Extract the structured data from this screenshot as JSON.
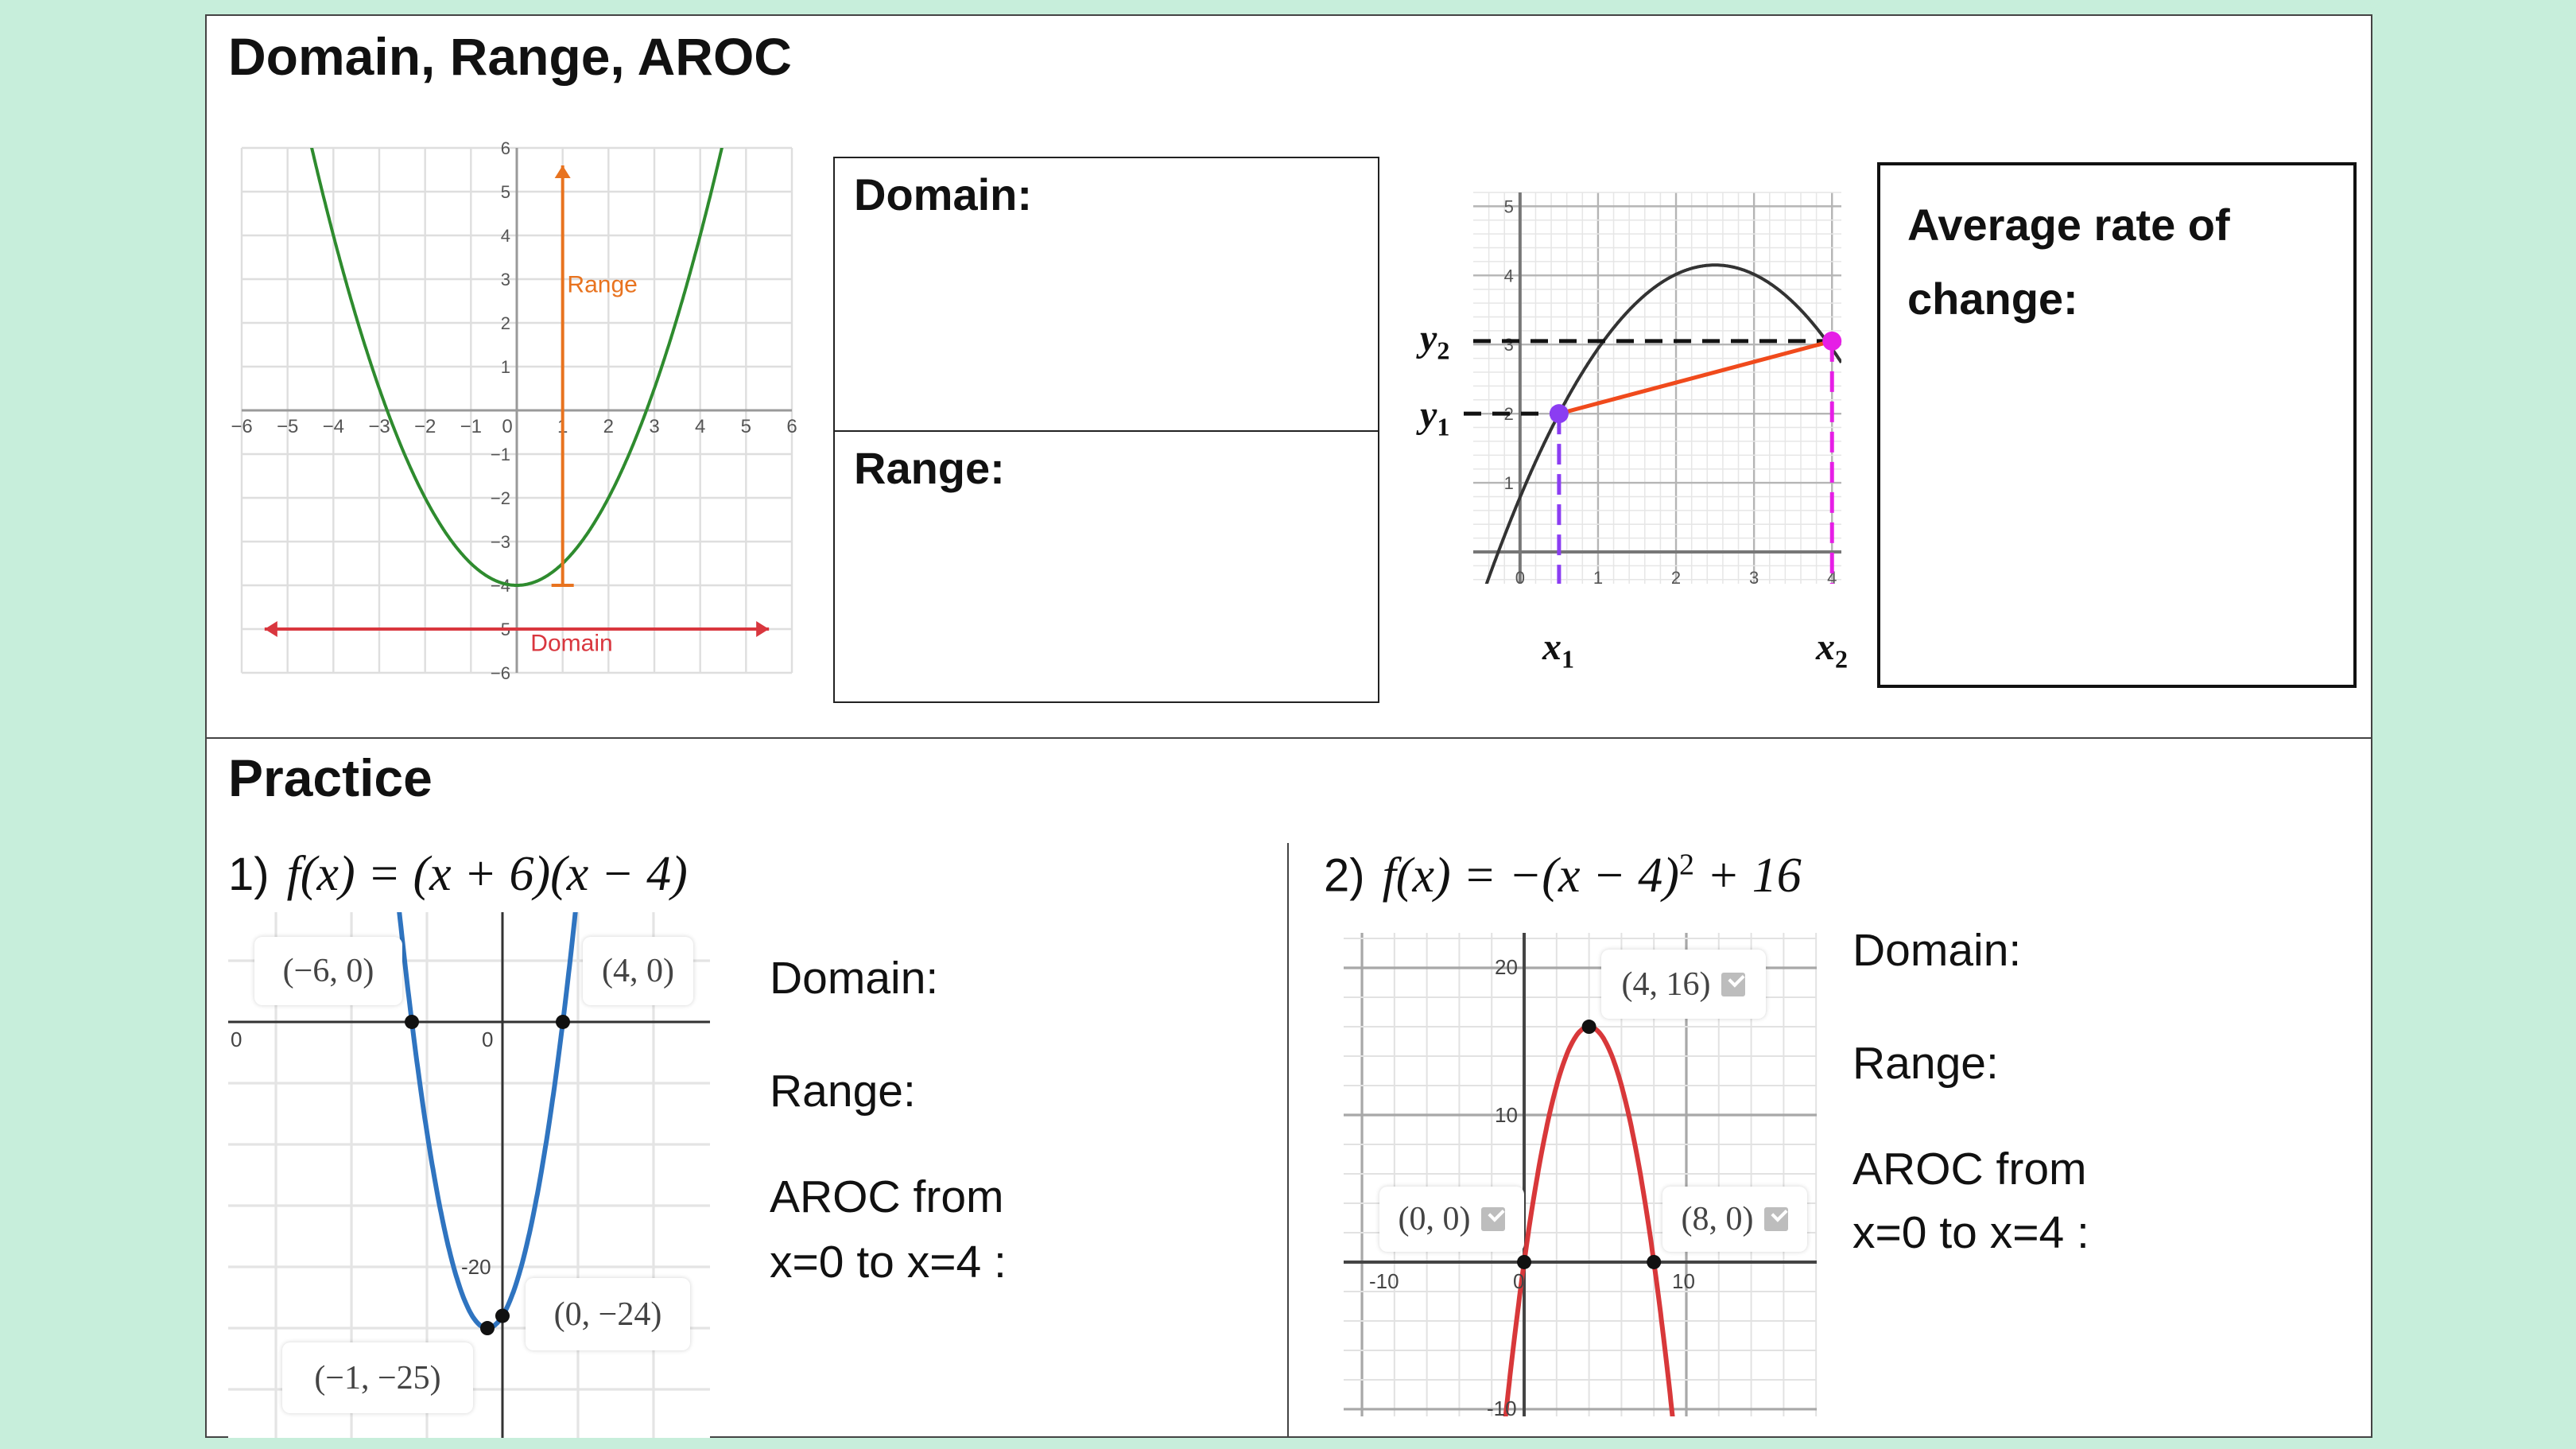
{
  "title": "Domain, Range, AROC",
  "example_box": {
    "domain_label": "Domain:",
    "range_label": "Range:"
  },
  "aroc_box": {
    "label": "Average rate of change:"
  },
  "practice": {
    "title": "Practice",
    "problems": [
      {
        "number": "1)",
        "equation": "f(x) = (x + 6)(x − 4)",
        "domain_label": "Domain:",
        "range_label": "Range:",
        "aroc_line1": "AROC from",
        "aroc_line2": "x=0 to x=4 :",
        "axis_labels": [
          "0",
          "0",
          "-20"
        ],
        "point_labels": [
          "(−6, 0)",
          "(4, 0)",
          "(0, −24)",
          "(−1, −25)"
        ]
      },
      {
        "number": "2)",
        "equation": "f(x) = −(x − 4)",
        "exponent": "2",
        "equation_tail": " + 16",
        "domain_label": "Domain:",
        "range_label": "Range:",
        "aroc_line1": "AROC from",
        "aroc_line2": "x=0 to x=4 :",
        "axis_labels": [
          "20",
          "10",
          "-10",
          "-10",
          "0",
          "10"
        ],
        "point_labels": [
          "(4, 16)",
          "(0, 0)",
          "(8, 0)"
        ]
      }
    ]
  },
  "aroc_labels": {
    "y2": "y",
    "y2_sub": "2",
    "y1": "y",
    "y1_sub": "1",
    "x1": "x",
    "x1_sub": "1",
    "x2": "x",
    "x2_sub": "2"
  },
  "chart_data": [
    {
      "id": "example-domain-range",
      "type": "line",
      "xlim": [
        -6,
        6
      ],
      "ylim": [
        -6,
        6
      ],
      "grid": true,
      "grid_step": 1,
      "major_step": 1,
      "curve": {
        "form": "vertex",
        "a": 0.5,
        "h": 0,
        "k": -4,
        "color": "#2e8b2e"
      },
      "x_ticks": [
        "−6",
        "−5",
        "−4",
        "−3",
        "−2",
        "−1",
        "0",
        "1",
        "2",
        "3",
        "4",
        "5",
        "6"
      ],
      "y_ticks": [
        "6",
        "5",
        "4",
        "3",
        "2",
        "1",
        "",
        "−1",
        "−2",
        "−3",
        "−4",
        "−5",
        "−6"
      ],
      "arrows": [
        {
          "name": "range",
          "text": "Range",
          "from": [
            1,
            -4
          ],
          "to": [
            1,
            5.6
          ],
          "color": "#e8731f",
          "text_at": [
            1.1,
            2.7
          ]
        },
        {
          "name": "domain",
          "text": "Domain",
          "from": [
            -5.5,
            -5
          ],
          "to": [
            5.5,
            -5
          ],
          "color": "#d9363e",
          "text_at": [
            0.3,
            -5.5
          ]
        }
      ]
    },
    {
      "id": "aroc-diagram",
      "type": "line",
      "xlim": [
        -0.6,
        4.12
      ],
      "ylim": [
        -0.46,
        5.2
      ],
      "grid": true,
      "grid_step": 0.2,
      "major_step": 1,
      "curve": {
        "form": "vertex",
        "a": -0.5375,
        "h": 2.5,
        "k": 4.15,
        "color": "#333333"
      },
      "x_ticks": [
        "0",
        "1",
        "2",
        "3",
        "4"
      ],
      "y_ticks": [
        "1",
        "2",
        "3",
        "4",
        "5"
      ],
      "points": [
        {
          "x": 0.5,
          "y": 2,
          "color": "#8b3df2"
        },
        {
          "x": 4,
          "y": 3.05,
          "color": "#e61ee6"
        }
      ],
      "secant_color": "#f04a1c"
    },
    {
      "id": "practice-1",
      "type": "line",
      "xlim": [
        -18.16,
        13.74
      ],
      "ylim": [
        -33.96,
        8.96
      ],
      "grid": true,
      "grid_step": 5,
      "major_step": 5,
      "curve": {
        "form": "vertex",
        "a": 1,
        "h": -1,
        "k": -25,
        "color": "#2f74c0"
      },
      "points": [
        {
          "x": -6,
          "y": 0
        },
        {
          "x": 4,
          "y": 0
        },
        {
          "x": 0,
          "y": -24
        },
        {
          "x": -1,
          "y": -25
        }
      ]
    },
    {
      "id": "practice-2",
      "type": "line",
      "xlim": [
        -11.13,
        18.04
      ],
      "ylim": [
        -10.49,
        22.38
      ],
      "grid": true,
      "grid_step": 2,
      "major_step": 10,
      "curve": {
        "form": "vertex",
        "a": -1,
        "h": 4,
        "k": 16,
        "color": "#d8383a"
      },
      "points": [
        {
          "x": 4,
          "y": 16
        },
        {
          "x": 0,
          "y": 0
        },
        {
          "x": 8,
          "y": 0
        }
      ]
    }
  ]
}
